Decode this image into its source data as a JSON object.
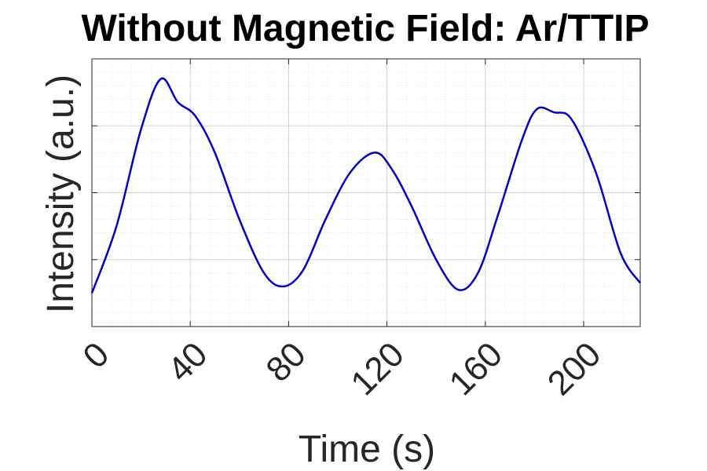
{
  "chart_data": {
    "type": "line",
    "title": "Without Magnetic Field: Ar/TTIP",
    "xlabel": "Time (s)",
    "ylabel": "Intensity (a.u.)",
    "xlim": [
      0,
      223
    ],
    "ylim": [
      0,
      4
    ],
    "grid": "major and minor, dotted",
    "y_tick_labels_shown": false,
    "x_ticks": [
      0,
      40,
      80,
      120,
      160,
      200
    ],
    "y_ticks": [
      1,
      2,
      3
    ],
    "series": [
      {
        "color": "#0000cd",
        "x": [
          0,
          10,
          20,
          28,
          35,
          42,
          50,
          60,
          70,
          78,
          86,
          95,
          105,
          115,
          122,
          130,
          140,
          149,
          157,
          165,
          175,
          181,
          188,
          195,
          205,
          215,
          223
        ],
        "y": [
          0.5,
          1.5,
          2.95,
          3.7,
          3.35,
          3.15,
          2.6,
          1.6,
          0.8,
          0.6,
          0.85,
          1.6,
          2.3,
          2.6,
          2.35,
          1.8,
          1.0,
          0.55,
          0.8,
          1.65,
          2.8,
          3.25,
          3.2,
          3.1,
          2.3,
          1.1,
          0.65
        ]
      }
    ]
  }
}
